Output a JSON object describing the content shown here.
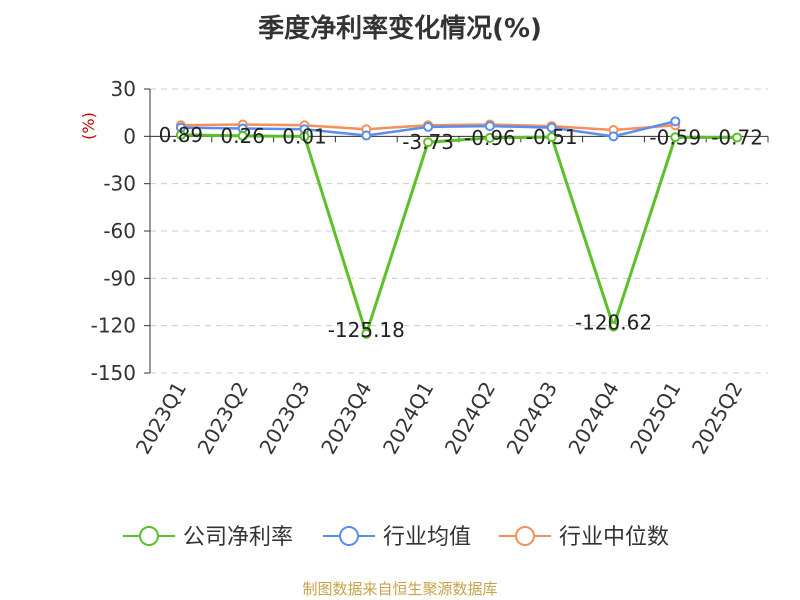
{
  "chart_data": {
    "type": "line",
    "title": "季度净利率变化情况(%)",
    "unit_label": "(%)",
    "categories": [
      "2023Q1",
      "2023Q2",
      "2023Q3",
      "2023Q4",
      "2024Q1",
      "2024Q2",
      "2024Q3",
      "2024Q4",
      "2025Q1",
      "2025Q2"
    ],
    "ylim": [
      -150,
      30
    ],
    "yticks": [
      30,
      0,
      -30,
      -60,
      -90,
      -120,
      -150
    ],
    "grid": true,
    "legend_position": "bottom",
    "series": [
      {
        "name": "公司净利率",
        "color": "#5cc02a",
        "values": [
          0.89,
          0.26,
          0.01,
          -125.18,
          -3.73,
          -0.96,
          -0.51,
          -120.62,
          -0.59,
          -0.72
        ],
        "labels": [
          "0.89",
          "0.26",
          "0.01",
          "-125.18",
          "-3.73",
          "-0.96",
          "-0.51",
          "-120.62",
          "-0.59",
          "-0.72"
        ]
      },
      {
        "name": "行业均值",
        "color": "#5b8def",
        "values": [
          5.5,
          5.0,
          4.5,
          0.5,
          6.0,
          6.5,
          5.5,
          0.0,
          9.5,
          null
        ]
      },
      {
        "name": "行业中位数",
        "color": "#f4905c",
        "values": [
          7.0,
          7.5,
          7.0,
          4.5,
          7.0,
          7.5,
          6.5,
          4.0,
          7.0,
          null
        ]
      }
    ]
  },
  "footer": {
    "source": "制图数据来自恒生聚源数据库"
  }
}
